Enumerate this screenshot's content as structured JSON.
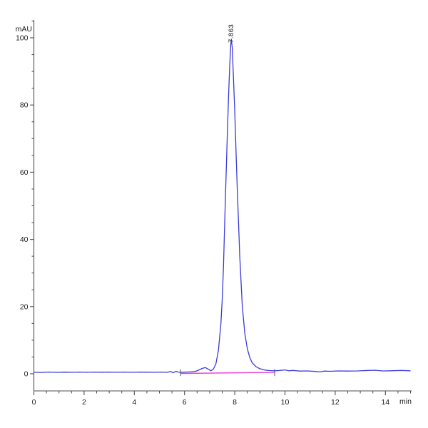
{
  "chart_data": {
    "type": "line",
    "title": "",
    "xlabel": "min",
    "ylabel": "mAU",
    "xlim": [
      0,
      15.05
    ],
    "ylim": [
      -5,
      105
    ],
    "grid": false,
    "legend": "none",
    "x_major_ticks": [
      0,
      2,
      4,
      6,
      8,
      10,
      12,
      14
    ],
    "x_minor_step": 0.5,
    "x_minor_max": 15,
    "y_major_ticks": [
      0,
      20,
      40,
      60,
      80,
      100
    ],
    "y_minor_step": 5,
    "y_minor_max": 105,
    "axis_color": "#4d4d4d",
    "label_color": "#1a1a1a",
    "series": [
      {
        "name": "detector-signal",
        "color": "#3b3bd8",
        "points": [
          [
            0,
            0.45
          ],
          [
            0.3,
            0.4
          ],
          [
            0.6,
            0.5
          ],
          [
            0.9,
            0.42
          ],
          [
            1.2,
            0.48
          ],
          [
            1.5,
            0.45
          ],
          [
            1.8,
            0.5
          ],
          [
            2.1,
            0.44
          ],
          [
            2.4,
            0.5
          ],
          [
            2.7,
            0.46
          ],
          [
            3.0,
            0.5
          ],
          [
            3.3,
            0.45
          ],
          [
            3.6,
            0.5
          ],
          [
            3.9,
            0.44
          ],
          [
            4.2,
            0.5
          ],
          [
            4.5,
            0.48
          ],
          [
            4.8,
            0.45
          ],
          [
            5.1,
            0.5
          ],
          [
            5.3,
            0.42
          ],
          [
            5.45,
            0.68
          ],
          [
            5.55,
            0.3
          ],
          [
            5.65,
            0.75
          ],
          [
            5.75,
            0.5
          ],
          [
            5.84,
            0.45
          ],
          [
            6.0,
            0.5
          ],
          [
            6.2,
            0.55
          ],
          [
            6.4,
            0.65
          ],
          [
            6.55,
            1.05
          ],
          [
            6.7,
            1.6
          ],
          [
            6.83,
            1.85
          ],
          [
            6.95,
            1.35
          ],
          [
            7.05,
            0.9
          ],
          [
            7.15,
            1.4
          ],
          [
            7.25,
            3.0
          ],
          [
            7.35,
            7.0
          ],
          [
            7.45,
            15.0
          ],
          [
            7.5,
            22.0
          ],
          [
            7.55,
            32.0
          ],
          [
            7.6,
            45.0
          ],
          [
            7.65,
            58.0
          ],
          [
            7.7,
            70.0
          ],
          [
            7.75,
            82.0
          ],
          [
            7.8,
            92.0
          ],
          [
            7.84,
            98.0
          ],
          [
            7.863,
            99.6
          ],
          [
            7.9,
            97.0
          ],
          [
            7.95,
            88.0
          ],
          [
            8.0,
            78.0
          ],
          [
            8.05,
            66.0
          ],
          [
            8.1,
            55.0
          ],
          [
            8.15,
            45.0
          ],
          [
            8.2,
            35.0
          ],
          [
            8.3,
            20.0
          ],
          [
            8.4,
            12.0
          ],
          [
            8.5,
            7.5
          ],
          [
            8.6,
            4.8
          ],
          [
            8.7,
            3.2
          ],
          [
            8.85,
            2.1
          ],
          [
            9.0,
            1.5
          ],
          [
            9.2,
            1.1
          ],
          [
            9.4,
            0.95
          ],
          [
            9.59,
            0.9
          ],
          [
            9.8,
            1.0
          ],
          [
            10.0,
            1.15
          ],
          [
            10.15,
            0.9
          ],
          [
            10.3,
            1.0
          ],
          [
            10.6,
            0.8
          ],
          [
            10.9,
            0.85
          ],
          [
            11.2,
            0.7
          ],
          [
            11.4,
            0.55
          ],
          [
            11.55,
            0.8
          ],
          [
            11.8,
            0.75
          ],
          [
            12.1,
            0.85
          ],
          [
            12.5,
            0.8
          ],
          [
            12.9,
            0.85
          ],
          [
            13.3,
            1.0
          ],
          [
            13.6,
            1.05
          ],
          [
            13.9,
            0.85
          ],
          [
            14.2,
            0.9
          ],
          [
            14.6,
            1.0
          ],
          [
            15.0,
            0.9
          ]
        ]
      },
      {
        "name": "integration-baseline",
        "color": "#e93fd0",
        "points": [
          [
            5.84,
            0.1
          ],
          [
            9.59,
            0.42
          ]
        ]
      }
    ],
    "integration_marks": [
      5.84,
      9.59
    ],
    "peaks": [
      {
        "label": "7.863",
        "retention_time_min": 7.863,
        "apex_mAU": 99.6
      }
    ]
  }
}
